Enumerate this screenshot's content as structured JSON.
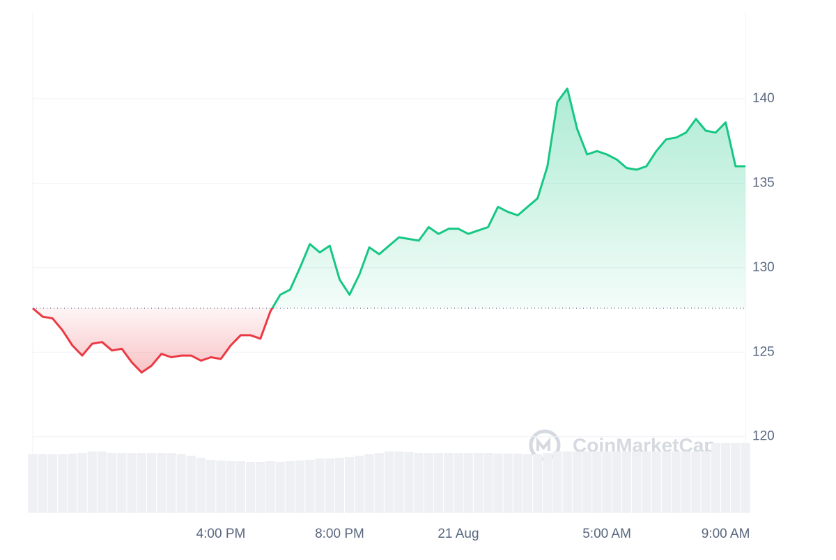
{
  "chart_data": {
    "type": "line",
    "categories": [
      null,
      null,
      null,
      null,
      null,
      null,
      null,
      null,
      null,
      null,
      null,
      null,
      null,
      null,
      null,
      null,
      null,
      null,
      null,
      "4:00 PM",
      null,
      null,
      null,
      null,
      null,
      null,
      null,
      null,
      null,
      null,
      null,
      "8:00 PM",
      null,
      null,
      null,
      null,
      null,
      null,
      null,
      null,
      null,
      null,
      null,
      "21 Aug",
      null,
      null,
      null,
      null,
      null,
      null,
      null,
      null,
      null,
      null,
      null,
      null,
      null,
      null,
      "5:00 AM",
      null,
      null,
      null,
      null,
      null,
      null,
      null,
      null,
      null,
      null,
      null,
      "9:00 AM",
      null,
      null
    ],
    "series": [
      {
        "values": [
          127.6,
          127.1,
          127.0,
          126.3,
          125.4,
          124.8,
          125.5,
          125.6,
          125.1,
          125.2,
          124.4,
          123.8,
          124.2,
          124.9,
          124.7,
          124.8,
          124.8,
          124.5,
          124.7,
          124.6,
          125.4,
          126.0,
          126.0,
          125.8,
          127.4,
          128.4,
          128.7,
          130.0,
          131.4,
          130.9,
          131.3,
          129.3,
          128.4,
          129.6,
          131.2,
          130.8,
          131.3,
          131.8,
          131.7,
          131.6,
          132.4,
          132.0,
          132.3,
          132.3,
          132.0,
          132.2,
          132.4,
          133.6,
          133.3,
          133.1,
          133.6,
          134.1,
          136.0,
          139.8,
          140.6,
          138.2,
          136.7,
          136.9,
          136.7,
          136.4,
          135.9,
          135.8,
          136.0,
          136.9,
          137.6,
          137.7,
          138.0,
          138.8,
          138.1,
          138.0,
          138.6,
          136.0,
          136.0
        ],
        "up_color": "#16c784",
        "down_color": "#ea3943"
      }
    ],
    "volume": {
      "color": "#eef0f3",
      "values": [
        84,
        84,
        84,
        84,
        85,
        86,
        88,
        88,
        86,
        86,
        86,
        86,
        86,
        86,
        86,
        84,
        82,
        79,
        76,
        75,
        74,
        74,
        73,
        73,
        74,
        73,
        74,
        75,
        76,
        78,
        78,
        79,
        80,
        82,
        84,
        86,
        88,
        88,
        87,
        86,
        86,
        86,
        86,
        86,
        86,
        86,
        86,
        85,
        85,
        85,
        84,
        84,
        86,
        88,
        88,
        88,
        88,
        88,
        88,
        88,
        88,
        88,
        88,
        88,
        88,
        88,
        88,
        88,
        88,
        100,
        100,
        100,
        100
      ]
    },
    "ylim": [
      115.5,
      145.1
    ],
    "yticks": [
      120,
      125,
      130,
      135,
      140
    ],
    "grid": true,
    "watermark": "CoinMarketCap"
  }
}
